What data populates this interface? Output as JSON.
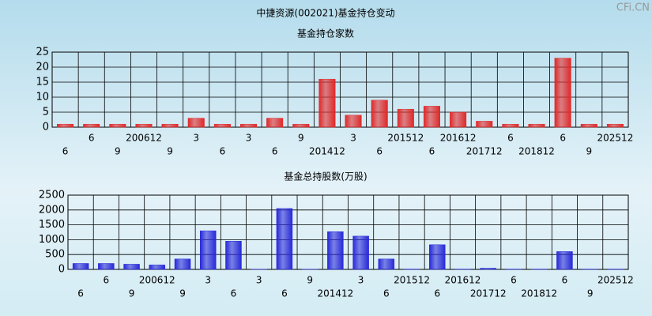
{
  "title": "中捷资源(002021)基金持仓变动",
  "watermark": "CFi.CN",
  "chart_data": [
    {
      "type": "bar",
      "title": "基金持仓家数",
      "color": "#e02828",
      "categories": [
        "6",
        "6",
        "9",
        "200612",
        "9",
        "3",
        "6",
        "3",
        "6",
        "9",
        "201412",
        "3",
        "6",
        "201512",
        "6",
        "201612",
        "201712",
        "6",
        "201812",
        "6",
        "9",
        "202512"
      ],
      "values": [
        1,
        1,
        1,
        1,
        1,
        3,
        1,
        1,
        3,
        1,
        16,
        4,
        9,
        6,
        7,
        5,
        2,
        1,
        1,
        23,
        1,
        1
      ],
      "ylim": [
        0,
        25
      ],
      "yticks": [
        0,
        5,
        10,
        15,
        20,
        25
      ],
      "grid": true
    },
    {
      "type": "bar",
      "title": "基金总持股数(万股)",
      "color": "#2828d8",
      "categories": [
        "6",
        "6",
        "9",
        "200612",
        "9",
        "3",
        "6",
        "3",
        "6",
        "9",
        "201412",
        "3",
        "6",
        "201512",
        "6",
        "201612",
        "201712",
        "6",
        "201812",
        "6",
        "9",
        "202512"
      ],
      "values": [
        200,
        200,
        175,
        150,
        350,
        1300,
        950,
        5,
        2050,
        5,
        1270,
        1120,
        350,
        10,
        830,
        10,
        40,
        10,
        10,
        600,
        10,
        10
      ],
      "ylim": [
        0,
        2500
      ],
      "yticks": [
        0,
        500,
        1000,
        1500,
        2000,
        2500
      ],
      "grid": true
    }
  ]
}
